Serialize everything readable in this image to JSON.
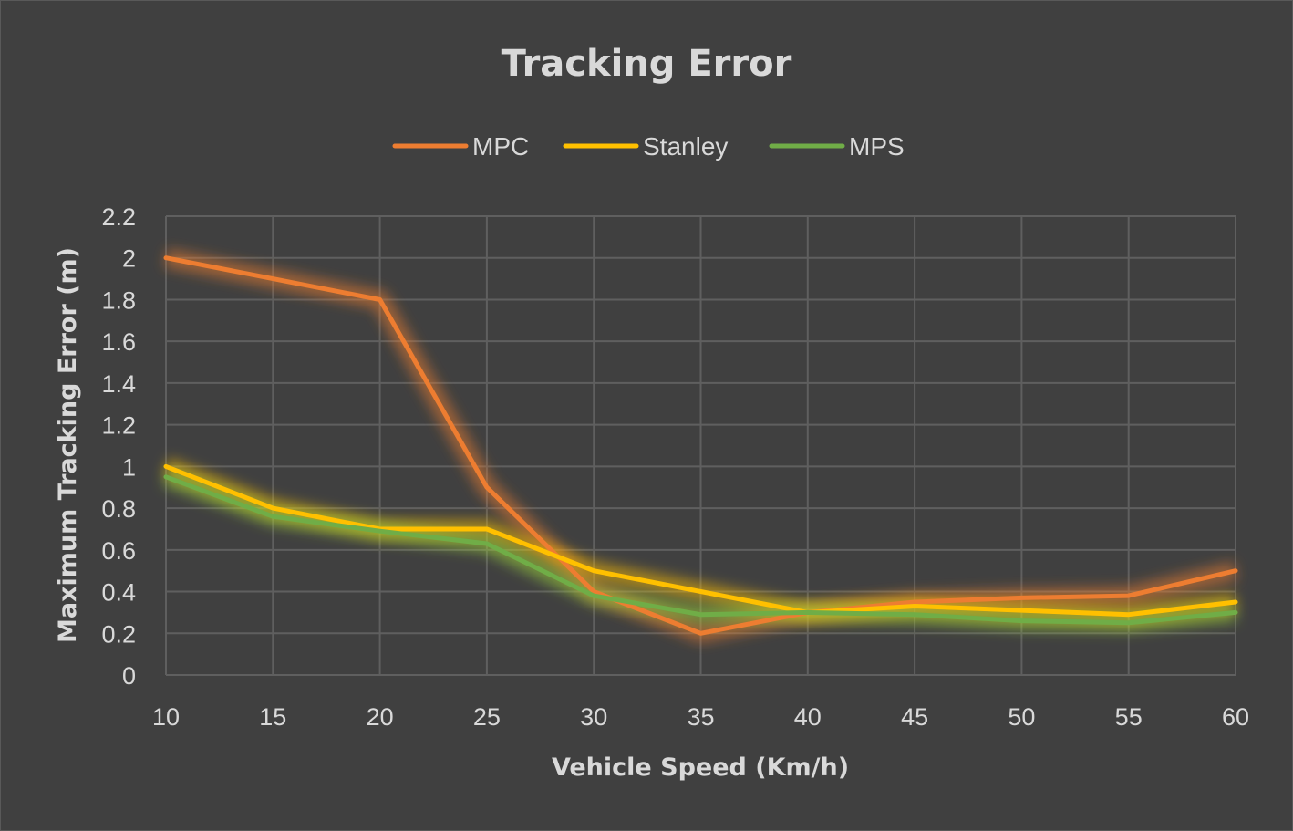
{
  "chart_data": {
    "type": "line",
    "title": "Tracking Error",
    "xlabel": "Vehicle Speed (Km/h)",
    "ylabel": "Maximum Tracking Error (m)",
    "categories": [
      "10",
      "15",
      "20",
      "25",
      "30",
      "35",
      "40",
      "45",
      "50",
      "55",
      "60"
    ],
    "yticks": [
      "0",
      "0.2",
      "0.4",
      "0.6",
      "0.8",
      "1",
      "1.2",
      "1.4",
      "1.6",
      "1.8",
      "2",
      "2.2"
    ],
    "ylim": [
      0,
      2.2
    ],
    "grid": true,
    "legend_position": "top",
    "series": [
      {
        "name": "MPC",
        "color": "#ed7d31",
        "glow": "#ed7d31",
        "values": [
          2.0,
          1.9,
          1.8,
          0.9,
          0.4,
          0.2,
          0.3,
          0.35,
          0.37,
          0.38,
          0.5
        ]
      },
      {
        "name": "Stanley",
        "color": "#ffc000",
        "glow": "#ffc000",
        "values": [
          1.0,
          0.8,
          0.7,
          0.7,
          0.5,
          0.4,
          0.3,
          0.33,
          0.31,
          0.29,
          0.35
        ]
      },
      {
        "name": "MPS",
        "color": "#70ad47",
        "glow": "#9bd53b",
        "values": [
          0.95,
          0.76,
          0.69,
          0.63,
          0.38,
          0.29,
          0.3,
          0.29,
          0.26,
          0.25,
          0.3
        ]
      }
    ]
  }
}
